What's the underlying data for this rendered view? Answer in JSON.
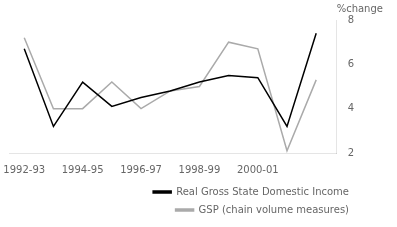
{
  "chart_data": {
    "type": "line",
    "x": [
      1992.5,
      1993.5,
      1994.5,
      1995.5,
      1996.5,
      1997.5,
      1998.5,
      1999.5,
      2000.5,
      2001.5,
      2002.5
    ],
    "series": [
      {
        "name": "Real Gross State Domestic Income",
        "color": "#000000",
        "values": [
          6.7,
          3.2,
          5.2,
          4.1,
          4.5,
          4.8,
          5.2,
          5.5,
          5.4,
          3.2,
          7.4
        ]
      },
      {
        "name": "GSP (chain volume measures)",
        "color": "#aaaaaa",
        "values": [
          7.2,
          4.0,
          4.0,
          5.2,
          4.0,
          4.8,
          5.0,
          7.0,
          6.7,
          2.1,
          5.3
        ]
      }
    ],
    "xlim": [
      1992.0,
      2003.2
    ],
    "xticks": [
      {
        "value": 1992.5,
        "label": "1992-93"
      },
      {
        "value": 1994.5,
        "label": "1994-95"
      },
      {
        "value": 1996.5,
        "label": "1996-97"
      },
      {
        "value": 1998.5,
        "label": "1998-99"
      },
      {
        "value": 2000.5,
        "label": "2000-01"
      }
    ],
    "ylim": [
      2,
      8
    ],
    "yticks": [
      2,
      4,
      6,
      8
    ],
    "annotations": [
      "%change"
    ],
    "legend": "bottom",
    "grid": false
  }
}
